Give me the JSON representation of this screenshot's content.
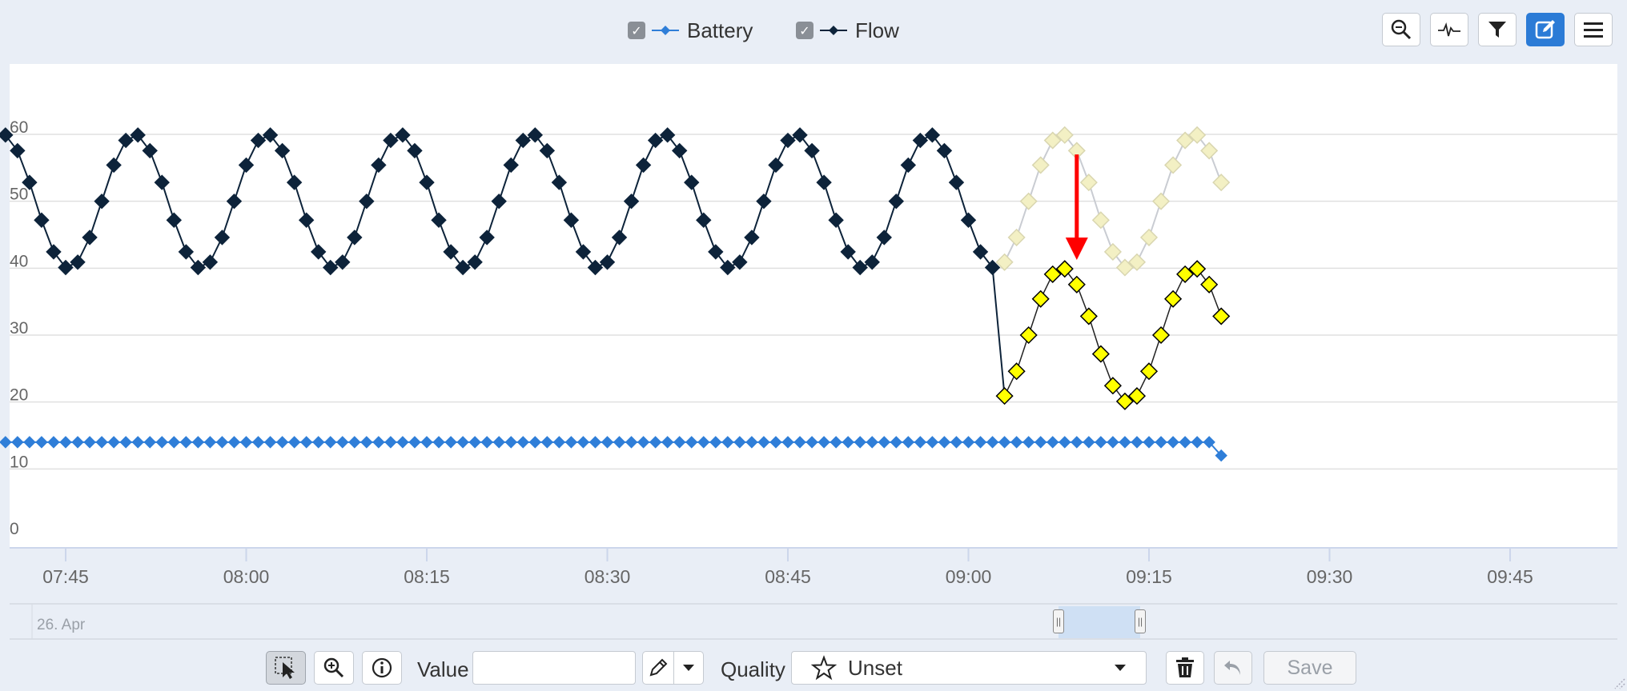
{
  "legend": [
    {
      "label": "Battery",
      "color": "#2f7ed8",
      "checked": true
    },
    {
      "label": "Flow",
      "color": "#0d233a",
      "checked": true
    }
  ],
  "toolbar": {
    "icons": [
      "zoom-icon",
      "pulse-icon",
      "filter-icon",
      "edit-icon",
      "menu-icon"
    ],
    "active": "edit-icon"
  },
  "navigator": {
    "date_label": "26. Apr"
  },
  "bottom": {
    "value_label": "Value",
    "value_input": "",
    "quality_label": "Quality",
    "quality_value": "Unset",
    "save_label": "Save"
  },
  "chart_data": {
    "type": "line",
    "x_ticks": [
      "07:45",
      "08:00",
      "08:15",
      "08:30",
      "08:45",
      "09:00",
      "09:15",
      "09:30",
      "09:45"
    ],
    "y_ticks": [
      0,
      10,
      20,
      30,
      40,
      50,
      60
    ],
    "ylim": [
      0,
      70
    ],
    "xlim": [
      "07:40",
      "09:50"
    ],
    "grid": true,
    "legend_position": "top-center",
    "series": [
      {
        "name": "Battery",
        "color": "#2f7ed8",
        "start": "07:40",
        "interval_min": 1,
        "value": 14,
        "last": {
          "x": "09:21",
          "y": 12
        }
      },
      {
        "name": "Flow",
        "color": "#0d233a",
        "start": "07:40",
        "interval_min": 1,
        "end": "09:02",
        "period_min": 11,
        "min": 40,
        "max": 60,
        "phase_min": 3
      },
      {
        "name": "Flow (original)",
        "color": "#f3f0c4",
        "start": "09:03",
        "interval_min": 1,
        "end": "09:21",
        "period_min": 11,
        "min": 40,
        "max": 60,
        "phase_min": 3
      },
      {
        "name": "Flow (edited)",
        "color": "#ffff00",
        "start": "09:03",
        "interval_min": 1,
        "end": "09:21",
        "period_min": 11,
        "min": 20,
        "max": 40,
        "phase_min": 3
      }
    ],
    "annotation": {
      "type": "arrow",
      "color": "#ff0000",
      "x": "09:09",
      "from_y": 57,
      "to_y": 41
    }
  }
}
